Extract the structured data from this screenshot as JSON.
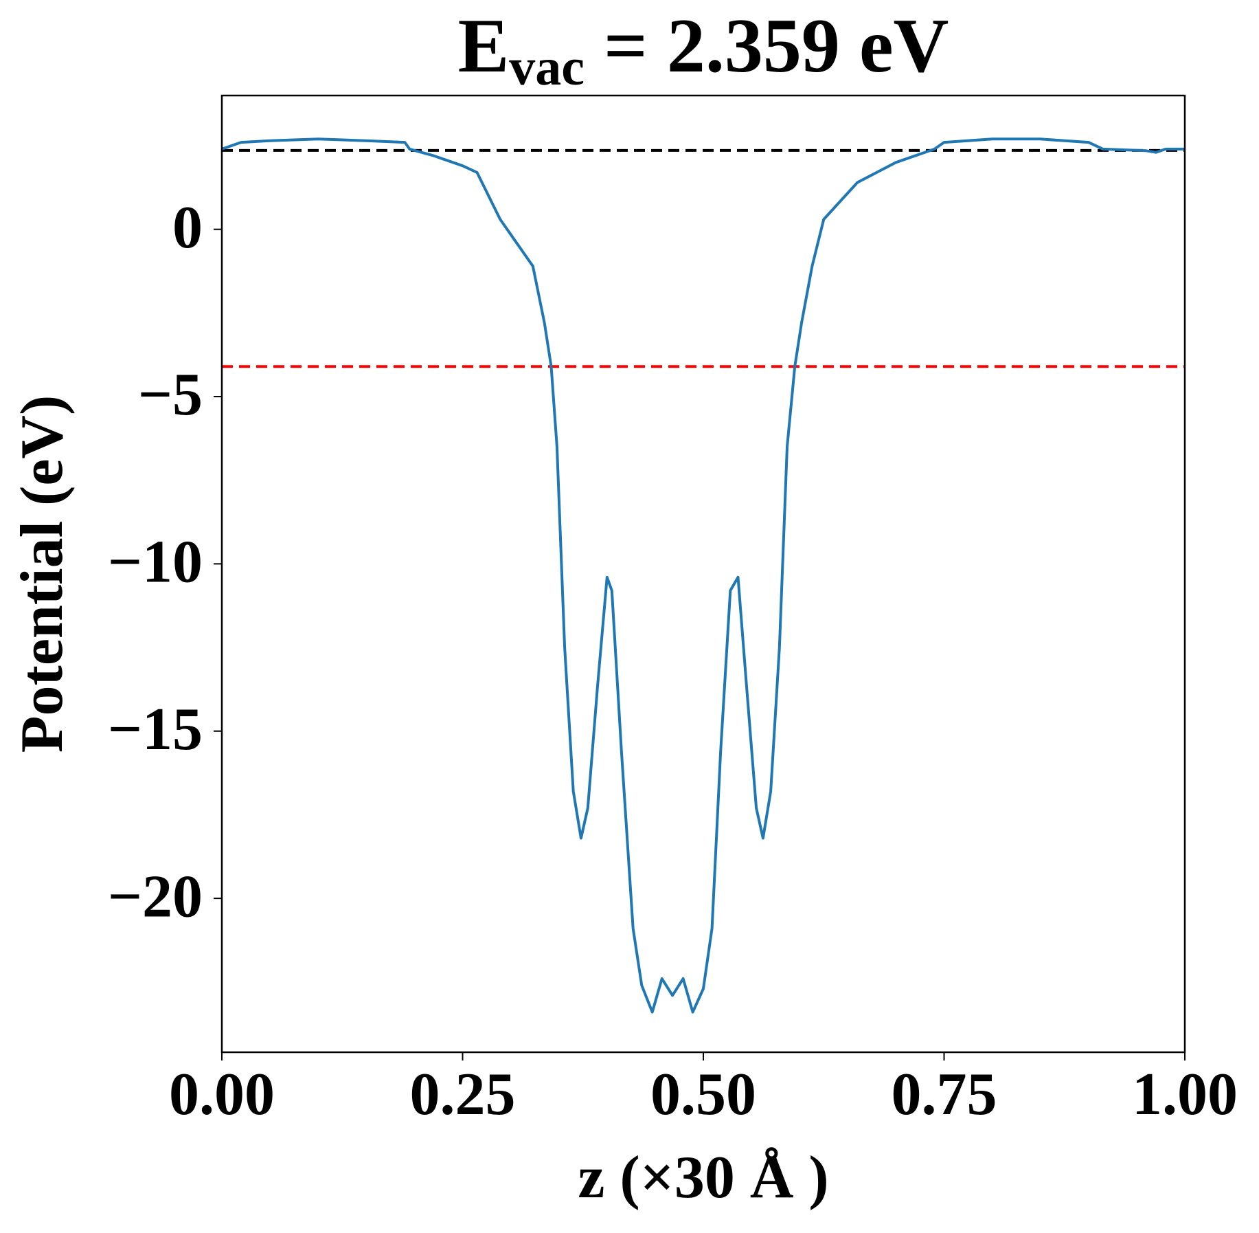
{
  "chart_data": {
    "type": "line",
    "title": {
      "main": "E",
      "subscript": "vac",
      "rest": " = 2.359 eV"
    },
    "x_label": "z (×30 Å )",
    "y_label": "Potential (eV)",
    "xlim": [
      0,
      1
    ],
    "ylim": [
      -24.6,
      4
    ],
    "xticks": [
      {
        "value": 0,
        "label": "0.00"
      },
      {
        "value": 0.25,
        "label": "0.25"
      },
      {
        "value": 0.5,
        "label": "0.50"
      },
      {
        "value": 0.75,
        "label": "0.75"
      },
      {
        "value": 1,
        "label": "1.00"
      }
    ],
    "yticks": [
      0,
      {
        "value": -5,
        "label": "−5"
      },
      {
        "value": -10,
        "label": "−10"
      },
      {
        "value": -15,
        "label": "−15"
      },
      {
        "value": -20,
        "label": "−20"
      }
    ],
    "hlines": [
      {
        "value": 2.359,
        "color": "#000000"
      },
      {
        "value": -4.1,
        "color": "#ff0000"
      }
    ],
    "series": [
      {
        "color": "#1f77b4",
        "x": [
          0,
          0.02,
          0.05,
          0.1,
          0.15,
          0.19,
          0.195,
          0.22,
          0.25,
          0.265,
          0.289,
          0.306,
          0.323,
          0.335,
          0.342,
          0.348,
          0.356,
          0.365,
          0.373,
          0.38,
          0.39,
          0.4,
          0.405,
          0.415,
          0.427,
          0.436,
          0.447,
          0.457,
          0.468,
          0.479,
          0.489,
          0.5,
          0.509,
          0.518,
          0.528,
          0.536,
          0.545,
          0.555,
          0.562,
          0.57,
          0.579,
          0.587,
          0.595,
          0.602,
          0.613,
          0.625,
          0.66,
          0.7,
          0.74,
          0.75,
          0.8,
          0.85,
          0.9,
          0.915,
          0.96,
          0.97,
          0.98,
          1.0
        ],
        "values": [
          2.4,
          2.6,
          2.65,
          2.7,
          2.65,
          2.6,
          2.4,
          2.2,
          1.9,
          1.7,
          0.3,
          -0.4,
          -1.1,
          -2.8,
          -4.1,
          -6.5,
          -12.5,
          -16.8,
          -18.2,
          -17.3,
          -13.7,
          -10.4,
          -10.8,
          -15.6,
          -20.9,
          -22.6,
          -23.4,
          -22.4,
          -22.9,
          -22.4,
          -23.4,
          -22.7,
          -20.9,
          -15.6,
          -10.8,
          -10.4,
          -13.7,
          -17.3,
          -18.2,
          -16.8,
          -12.5,
          -6.5,
          -4.1,
          -2.8,
          -1.1,
          0.3,
          1.4,
          2.0,
          2.4,
          2.6,
          2.7,
          2.7,
          2.6,
          2.4,
          2.35,
          2.3,
          2.4,
          2.4
        ]
      }
    ]
  }
}
